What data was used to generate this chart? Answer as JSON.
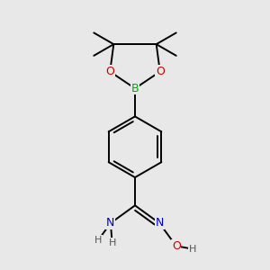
{
  "bg_color": "#e8e8e8",
  "atom_colors": {
    "C": "#000000",
    "H": "#555555",
    "N": "#0000cc",
    "O": "#cc0000",
    "B": "#00aa00"
  },
  "bond_color": "#000000",
  "line_width": 1.4,
  "figsize": [
    3.0,
    3.0
  ],
  "dpi": 100
}
